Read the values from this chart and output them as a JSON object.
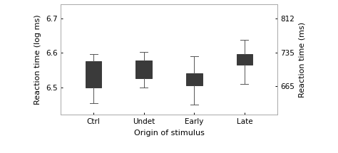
{
  "categories": [
    "Ctrl",
    "Undet",
    "Early",
    "Late"
  ],
  "xlabel": "Origin of stimulus",
  "ylabel_left": "Reaction time (log ms)",
  "ylabel_right": "Reaction time (ms)",
  "yticks_left": [
    6.5,
    6.6,
    6.7
  ],
  "yticks_right_labels": [
    "665",
    "735",
    "812"
  ],
  "yticks_right_values": [
    6.5025,
    6.6003,
    6.6995
  ],
  "ylim": [
    6.42,
    6.74
  ],
  "xlim": [
    0.35,
    4.65
  ],
  "box_data": {
    "Ctrl": {
      "q1": 6.5,
      "median": 6.545,
      "q3": 6.575,
      "whislo": 6.453,
      "whishi": 6.597
    },
    "Undet": {
      "q1": 6.525,
      "median": 6.555,
      "q3": 6.578,
      "whislo": 6.5,
      "whishi": 6.602
    },
    "Early": {
      "q1": 6.505,
      "median": 6.523,
      "q3": 6.54,
      "whislo": 6.45,
      "whishi": 6.59
    },
    "Late": {
      "q1": 6.565,
      "median": 6.583,
      "q3": 6.596,
      "whislo": 6.51,
      "whishi": 6.637
    }
  },
  "box_color": "#3a3a3a",
  "box_width": 0.32,
  "background_color": "#ffffff",
  "plot_bg_color": "#ffffff",
  "font_size": 7.5,
  "label_font_size": 8
}
